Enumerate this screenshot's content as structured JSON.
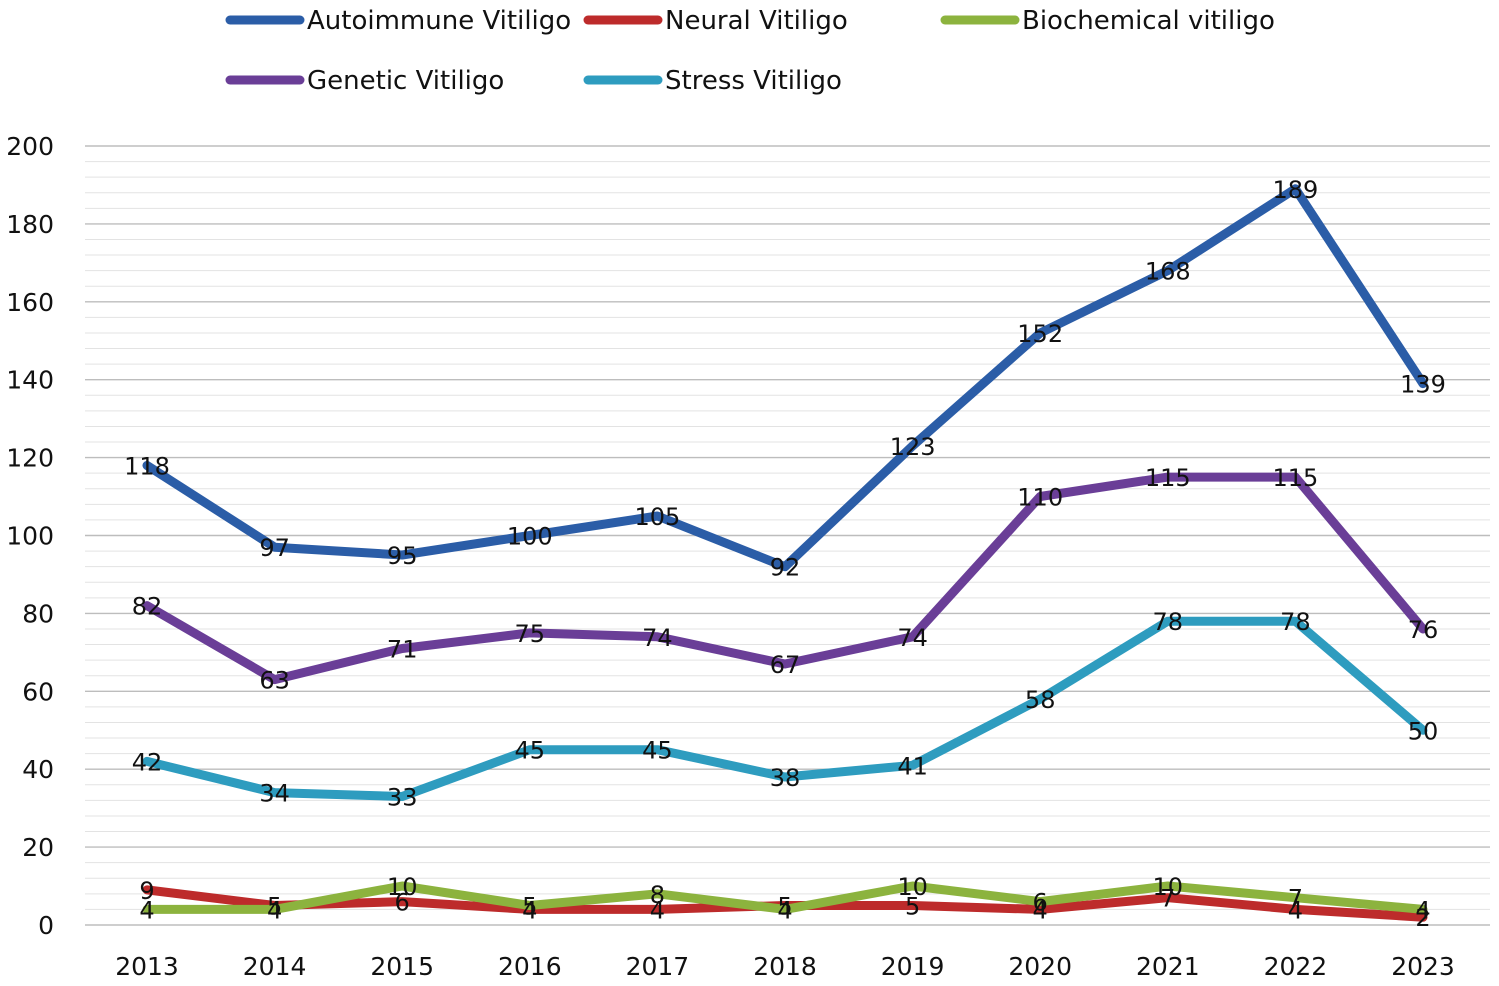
{
  "chart_data": {
    "type": "line",
    "title": "",
    "xlabel": "",
    "ylabel": "",
    "categories": [
      "2013",
      "2014",
      "2015",
      "2016",
      "2017",
      "2018",
      "2019",
      "2020",
      "2021",
      "2022",
      "2023"
    ],
    "ylim": [
      0,
      200
    ],
    "yticks": [
      0,
      20,
      40,
      60,
      80,
      100,
      120,
      140,
      160,
      180,
      200
    ],
    "grid": true,
    "legend_position": "top",
    "series": [
      {
        "name": "Autoimmune Vitiligo",
        "color": "#2B5DA7",
        "values": [
          118,
          97,
          95,
          100,
          105,
          92,
          123,
          152,
          168,
          189,
          139
        ]
      },
      {
        "name": "Neural Vitiligo",
        "color": "#BD2B2B",
        "values": [
          9,
          5,
          6,
          4,
          4,
          5,
          5,
          4,
          7,
          4,
          2
        ]
      },
      {
        "name": "Biochemical vitiligo",
        "color": "#8CB33E",
        "values": [
          4,
          4,
          10,
          5,
          8,
          4,
          10,
          6,
          10,
          7,
          4
        ]
      },
      {
        "name": "Genetic Vitiligo",
        "color": "#6A3E97",
        "values": [
          82,
          63,
          71,
          75,
          74,
          67,
          74,
          110,
          115,
          115,
          76
        ]
      },
      {
        "name": "Stress Vitiligo",
        "color": "#2E9CBF",
        "values": [
          42,
          34,
          33,
          45,
          45,
          38,
          41,
          58,
          78,
          78,
          50
        ]
      }
    ]
  }
}
